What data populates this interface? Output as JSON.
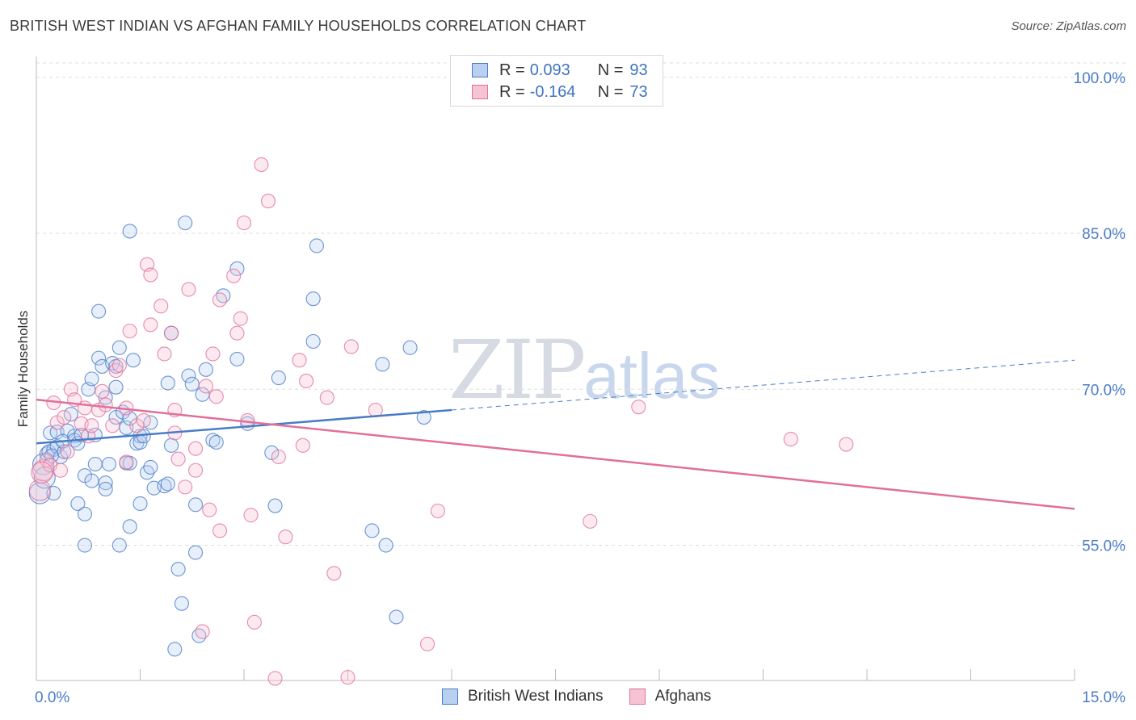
{
  "title": "BRITISH WEST INDIAN VS AFGHAN FAMILY HOUSEHOLDS CORRELATION CHART",
  "source": "Source: ZipAtlas.com",
  "watermark": {
    "main": "ZIP",
    "sub": "atlas"
  },
  "legend": {
    "r_label": "R =",
    "n_label": "N =",
    "series": [
      {
        "name": "British West Indians",
        "r": "0.093",
        "n": "93",
        "color": "#4a7cc7",
        "fill": "#b9d0f0"
      },
      {
        "name": "Afghans",
        "r": "-0.164",
        "n": "73",
        "color": "#e0709a",
        "fill": "#f6c3d4"
      }
    ]
  },
  "chart_data": {
    "type": "scatter",
    "title": "BRITISH WEST INDIAN VS AFGHAN FAMILY HOUSEHOLDS CORRELATION CHART",
    "xlabel": "",
    "ylabel": "Family Households",
    "xlim": [
      0,
      15
    ],
    "ylim": [
      42,
      102
    ],
    "x_tick_labels": [
      "0.0%",
      "15.0%"
    ],
    "y_ticks": [
      55,
      70,
      85,
      100
    ],
    "y_tick_labels": [
      "55.0%",
      "70.0%",
      "85.0%",
      "100.0%"
    ],
    "grid": true,
    "series": [
      {
        "name": "British West Indians",
        "color": "#4a7cc7",
        "trend": {
          "x0": 0,
          "y0": 64.8,
          "x1": 6,
          "y1": 68.0,
          "dashed_to_x": 15,
          "dashed_to_y": 72.8
        },
        "points": [
          [
            0.05,
            60.0
          ],
          [
            0.1,
            62.8
          ],
          [
            0.15,
            63.8
          ],
          [
            0.18,
            64.0
          ],
          [
            0.2,
            65.8
          ],
          [
            0.25,
            64.2
          ],
          [
            0.3,
            65.9
          ],
          [
            0.3,
            64.5
          ],
          [
            0.35,
            63.5
          ],
          [
            0.4,
            64.0
          ],
          [
            0.45,
            66.0
          ],
          [
            0.5,
            67.6
          ],
          [
            0.55,
            65.5
          ],
          [
            0.55,
            65.1
          ],
          [
            0.6,
            64.8
          ],
          [
            0.6,
            59.0
          ],
          [
            0.65,
            65.6
          ],
          [
            0.7,
            61.7
          ],
          [
            0.7,
            58.0
          ],
          [
            0.75,
            70.0
          ],
          [
            0.7,
            55.0
          ],
          [
            0.8,
            61.2
          ],
          [
            0.8,
            71.0
          ],
          [
            0.85,
            65.6
          ],
          [
            0.85,
            62.8
          ],
          [
            0.9,
            73.0
          ],
          [
            0.9,
            77.5
          ],
          [
            0.95,
            72.2
          ],
          [
            1.0,
            69.2
          ],
          [
            1.0,
            61.0
          ],
          [
            1.0,
            60.4
          ],
          [
            1.05,
            62.8
          ],
          [
            1.1,
            72.5
          ],
          [
            1.15,
            70.2
          ],
          [
            1.15,
            72.2
          ],
          [
            1.15,
            67.3
          ],
          [
            1.2,
            74.0
          ],
          [
            1.2,
            55.0
          ],
          [
            1.25,
            67.8
          ],
          [
            1.3,
            66.3
          ],
          [
            1.3,
            62.9
          ],
          [
            1.35,
            85.2
          ],
          [
            1.35,
            62.9
          ],
          [
            1.35,
            67.2
          ],
          [
            1.4,
            72.8
          ],
          [
            1.35,
            56.8
          ],
          [
            1.45,
            64.8
          ],
          [
            1.5,
            65.5
          ],
          [
            1.5,
            64.9
          ],
          [
            1.5,
            59.0
          ],
          [
            1.55,
            65.5
          ],
          [
            1.6,
            62.0
          ],
          [
            1.65,
            62.5
          ],
          [
            1.65,
            66.8
          ],
          [
            1.7,
            60.5
          ],
          [
            1.85,
            60.7
          ],
          [
            1.9,
            70.6
          ],
          [
            1.95,
            75.4
          ],
          [
            1.95,
            64.6
          ],
          [
            2.0,
            45.0
          ],
          [
            2.05,
            52.7
          ],
          [
            2.1,
            49.4
          ],
          [
            2.15,
            86.0
          ],
          [
            2.2,
            71.3
          ],
          [
            2.25,
            70.5
          ],
          [
            2.3,
            58.9
          ],
          [
            2.3,
            54.3
          ],
          [
            2.35,
            46.3
          ],
          [
            2.4,
            69.5
          ],
          [
            2.45,
            71.9
          ],
          [
            2.55,
            65.1
          ],
          [
            2.7,
            79.0
          ],
          [
            2.9,
            81.6
          ],
          [
            2.9,
            72.9
          ],
          [
            3.05,
            66.7
          ],
          [
            3.4,
            63.9
          ],
          [
            3.45,
            58.8
          ],
          [
            3.5,
            71.1
          ],
          [
            4.0,
            78.7
          ],
          [
            4.0,
            74.6
          ],
          [
            4.05,
            83.8
          ],
          [
            4.85,
            56.4
          ],
          [
            5.0,
            72.4
          ],
          [
            5.05,
            55.0
          ],
          [
            5.2,
            48.1
          ],
          [
            5.4,
            74.0
          ],
          [
            5.6,
            67.3
          ],
          [
            0.25,
            60.0
          ],
          [
            0.12,
            61.5
          ],
          [
            0.22,
            63.6
          ],
          [
            0.38,
            65.0
          ],
          [
            1.9,
            60.9
          ],
          [
            2.6,
            64.9
          ]
        ]
      },
      {
        "name": "Afghans",
        "color": "#e0709a",
        "trend": {
          "x0": 0,
          "y0": 69.0,
          "x1": 15,
          "y1": 58.5
        },
        "points": [
          [
            0.05,
            60.3
          ],
          [
            0.1,
            62.2
          ],
          [
            0.15,
            63.2
          ],
          [
            0.2,
            62.7
          ],
          [
            0.25,
            68.7
          ],
          [
            0.3,
            66.8
          ],
          [
            0.35,
            62.2
          ],
          [
            0.4,
            67.3
          ],
          [
            0.5,
            70.0
          ],
          [
            0.55,
            69.0
          ],
          [
            0.65,
            66.7
          ],
          [
            0.7,
            68.2
          ],
          [
            0.75,
            65.5
          ],
          [
            0.8,
            66.5
          ],
          [
            0.9,
            68.0
          ],
          [
            0.95,
            69.8
          ],
          [
            1.0,
            68.5
          ],
          [
            1.1,
            66.5
          ],
          [
            1.15,
            71.8
          ],
          [
            1.2,
            72.3
          ],
          [
            1.3,
            68.2
          ],
          [
            1.3,
            63.0
          ],
          [
            1.35,
            75.6
          ],
          [
            1.45,
            66.5
          ],
          [
            1.55,
            67.0
          ],
          [
            1.6,
            82.0
          ],
          [
            1.65,
            81.0
          ],
          [
            1.65,
            76.2
          ],
          [
            1.8,
            78.0
          ],
          [
            1.85,
            73.4
          ],
          [
            1.95,
            75.4
          ],
          [
            2.0,
            68.0
          ],
          [
            2.0,
            65.8
          ],
          [
            2.05,
            63.3
          ],
          [
            2.15,
            60.6
          ],
          [
            2.2,
            79.6
          ],
          [
            2.3,
            64.3
          ],
          [
            2.3,
            62.2
          ],
          [
            2.4,
            46.7
          ],
          [
            2.45,
            70.3
          ],
          [
            2.5,
            58.4
          ],
          [
            2.55,
            73.4
          ],
          [
            2.6,
            69.3
          ],
          [
            2.65,
            78.6
          ],
          [
            2.65,
            56.4
          ],
          [
            2.85,
            80.9
          ],
          [
            2.9,
            75.4
          ],
          [
            2.95,
            76.8
          ],
          [
            3.0,
            86.0
          ],
          [
            3.05,
            67.0
          ],
          [
            3.1,
            57.9
          ],
          [
            3.15,
            47.6
          ],
          [
            3.25,
            91.6
          ],
          [
            3.35,
            88.1
          ],
          [
            3.45,
            42.2
          ],
          [
            3.5,
            63.5
          ],
          [
            3.6,
            55.8
          ],
          [
            3.8,
            72.8
          ],
          [
            3.85,
            64.6
          ],
          [
            3.9,
            70.8
          ],
          [
            4.2,
            69.2
          ],
          [
            4.3,
            52.3
          ],
          [
            4.5,
            42.3
          ],
          [
            4.55,
            74.1
          ],
          [
            4.9,
            68.0
          ],
          [
            5.65,
            45.5
          ],
          [
            5.8,
            58.3
          ],
          [
            8.0,
            57.3
          ],
          [
            8.7,
            68.3
          ],
          [
            10.9,
            65.2
          ],
          [
            11.7,
            64.7
          ],
          [
            0.08,
            62.0
          ],
          [
            0.45,
            64.0
          ]
        ]
      }
    ]
  }
}
